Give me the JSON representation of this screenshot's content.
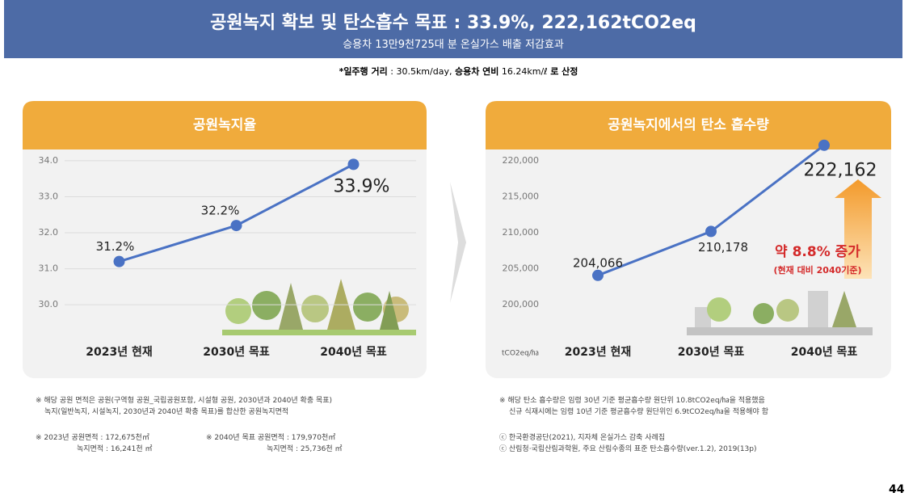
{
  "header": {
    "title": "공원녹지 확보 및 탄소흡수 목표 : 33.9%, 222,162tCO2eq",
    "subtitle": "승용차 13만9천725대 분 온실가스 배출 저감효과"
  },
  "note": [
    "*일주행 거리",
    " : 30.5km/day, ",
    "승용차 연비",
    " 16.24km/ℓ ",
    "로 산정"
  ],
  "chart_data": [
    {
      "type": "line",
      "title": "공원녹지율",
      "categories": [
        "2023년 현재",
        "2030년 목표",
        "2040년 목표"
      ],
      "values": [
        31.2,
        32.2,
        33.9
      ],
      "value_labels": [
        "31.2%",
        "32.2%",
        "33.9%"
      ],
      "color": "#4a72c4",
      "ylim": [
        29.15,
        34.2
      ],
      "yticks": [
        {
          "value": 30,
          "label": "30.0"
        },
        {
          "value": 31,
          "label": "31.0"
        },
        {
          "value": 32,
          "label": "32.0"
        },
        {
          "value": 33,
          "label": "33.0"
        },
        {
          "value": 34,
          "label": "34.0"
        }
      ],
      "grid": true
    },
    {
      "type": "line",
      "title": "공원녹지에서의 탄소 흡수량",
      "categories": [
        "2023년 현재",
        "2030년 목표",
        "2040년 목표"
      ],
      "values": [
        204066,
        210178,
        222162
      ],
      "value_labels": [
        "204,066",
        "210,178",
        "222,162"
      ],
      "color": "#4a72c4",
      "ylim": [
        195730,
        221010
      ],
      "yticks": [
        {
          "value": 200000,
          "label": "200,000"
        },
        {
          "value": 205000,
          "label": "205,000"
        },
        {
          "value": 210000,
          "label": "210,000"
        },
        {
          "value": 215000,
          "label": "215,000"
        },
        {
          "value": 220000,
          "label": "220,000"
        }
      ],
      "grid": false,
      "unit_label": "tCO2eq/㏊",
      "annotations": [
        "약 8.8% 증가",
        "(현재 대비 2040기준)"
      ]
    }
  ],
  "footnotes_left": [
    "※ 해당 공원 면적은 공원(구역형 공원_국립공원포함, 시설형 공원, 2030년과 2040년 확충 목표)",
    "녹지(일반녹지, 시설녹지, 2030년과 2040년 확충 목표)를 합산한 공원녹지면적",
    "※ 2023년 공원면적 : 172,675천㎡",
    "녹지면적 : 16,241천 ㎡",
    "※ 2040년 목표 공원면적 : 179,970천㎡",
    "녹지면적 : 25,736천 ㎡"
  ],
  "footnotes_right": [
    "※ 해당 탄소 흡수량은 임령 30년 기준 평균흡수량 원단위 10.8tCO2eq/㏊을 적용했음",
    "신규 식재시에는 임령 10년 기준 평균흡수량 원단위인 6.9tCO2eq/㏊을 적용해야 함",
    "ⓒ 한국환경공단(2021), 지자체 온실가스 감축 사례집",
    "ⓒ 산림청·국립산림과학원, 주요 산림수종의 표준 탄소흡수량(ver.1.2), 2019(13p)"
  ],
  "page_number": "44"
}
